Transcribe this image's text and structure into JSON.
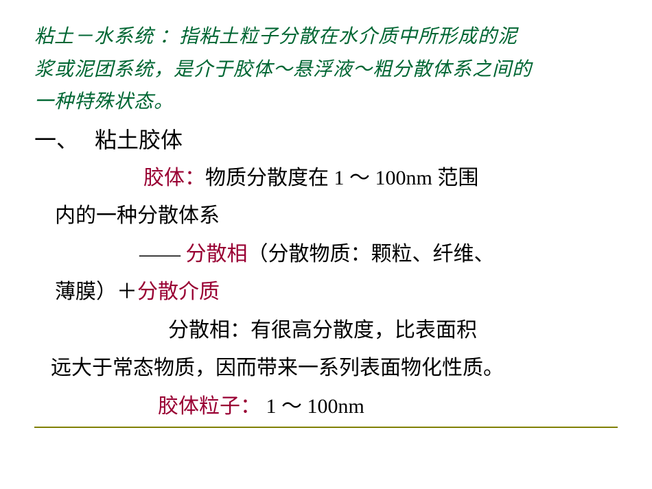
{
  "colors": {
    "intro_text": "#006633",
    "body_text": "#000000",
    "highlight": "#990033",
    "rule": "#808000",
    "background": "#ffffff"
  },
  "typography": {
    "intro_fontsize": 28,
    "heading_fontsize": 32,
    "body_fontsize": 30,
    "intro_style": "italic-kaiti",
    "body_family": "SimSun"
  },
  "intro": {
    "l1": "粘土－水系统 ：指粘土粒子分散在水介质中所形成的泥",
    "l2": "浆或泥团系统，是介于胶体～悬浮液～粗分散体系之间的",
    "l3": "一种特殊状态。"
  },
  "heading": {
    "num": "一、",
    "title": "粘土胶体"
  },
  "para1": {
    "lead": "胶体：",
    "rest1": "物质分散度在 1 ～ 100nm 范围",
    "rest2": "内的一种分散体系"
  },
  "para2": {
    "dash": "——  ",
    "h1": "分散相",
    "mid": "（分散物质：颗粒、纤维、",
    "cont1": "薄膜）＋",
    "h2": "分散介质"
  },
  "para3": {
    "line1": "分散相：有很高分散度，比表面积",
    "line2": "远大于常态物质，因而带来一系列表面物化性质。"
  },
  "para4": {
    "h": "胶体粒子：",
    "rest": " 1 ～ 100nm"
  }
}
